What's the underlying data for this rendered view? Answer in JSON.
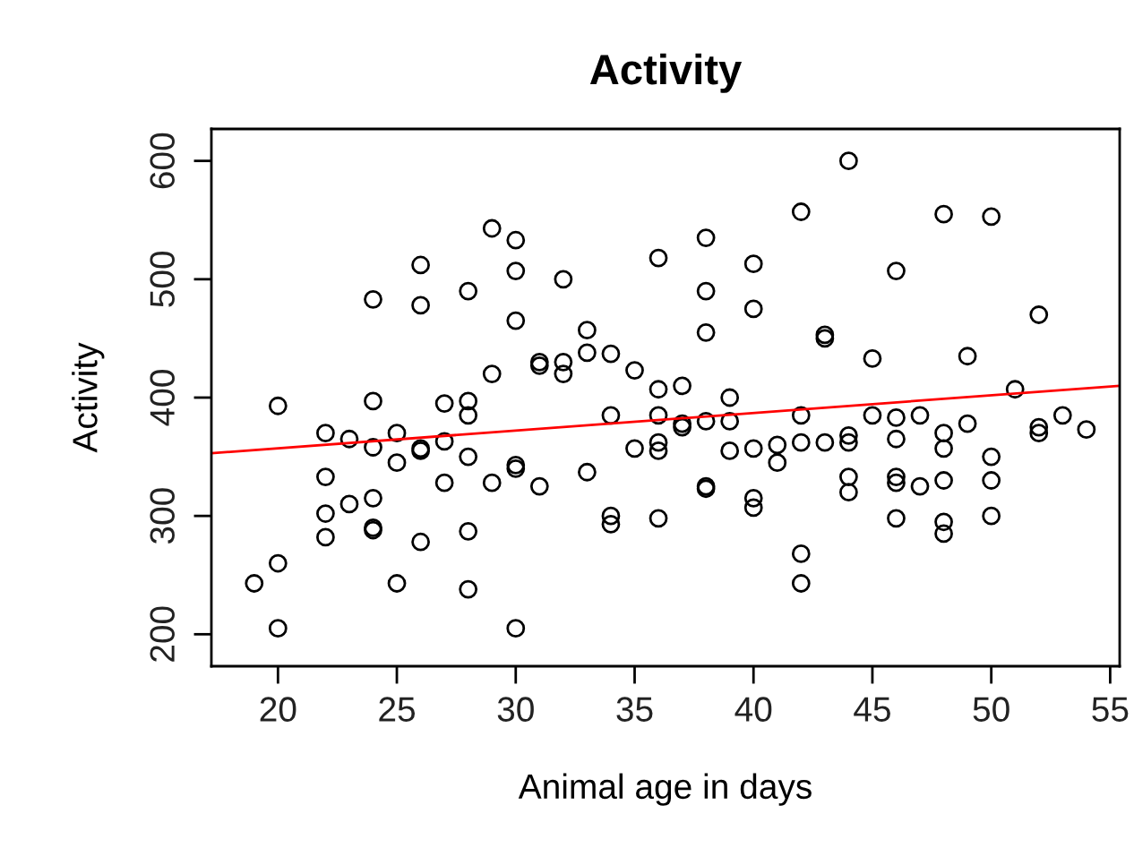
{
  "chart_data": {
    "type": "scatter",
    "title": "Activity",
    "xlabel": "Animal age in days",
    "ylabel": "Activity",
    "xlim": [
      17.2,
      55.4
    ],
    "ylim": [
      173,
      627
    ],
    "xticks": [
      20,
      25,
      30,
      35,
      40,
      45,
      50,
      55
    ],
    "yticks": [
      200,
      300,
      400,
      500,
      600
    ],
    "grid": false,
    "legend": false,
    "marker": "circle",
    "series": [
      {
        "color": "#000000",
        "x": [
          19,
          20,
          20,
          20,
          22,
          22,
          22,
          22,
          23,
          23,
          24,
          24,
          24,
          24,
          24,
          24,
          25,
          25,
          25,
          26,
          26,
          26,
          26,
          26,
          27,
          27,
          27,
          28,
          28,
          28,
          28,
          28,
          28,
          29,
          29,
          29,
          30,
          30,
          30,
          30,
          30,
          30,
          31,
          31,
          31,
          32,
          32,
          32,
          33,
          33,
          33,
          34,
          34,
          34,
          34,
          35,
          35,
          36,
          36,
          36,
          36,
          36,
          36,
          37,
          37,
          37,
          38,
          38,
          38,
          38,
          38,
          38,
          39,
          39,
          39,
          40,
          40,
          40,
          40,
          40,
          41,
          41,
          42,
          42,
          42,
          42,
          42,
          43,
          43,
          43,
          44,
          44,
          44,
          44,
          44,
          45,
          45,
          46,
          46,
          46,
          46,
          46,
          46,
          47,
          47,
          48,
          48,
          48,
          48,
          48,
          48,
          49,
          49,
          50,
          50,
          50,
          50,
          51,
          52,
          52,
          52,
          53,
          54
        ],
        "values": [
          243,
          393,
          260,
          205,
          370,
          333,
          302,
          282,
          365,
          310,
          483,
          397,
          358,
          315,
          290,
          288,
          370,
          345,
          243,
          512,
          478,
          355,
          357,
          278,
          395,
          363,
          328,
          490,
          397,
          385,
          350,
          287,
          238,
          543,
          420,
          328,
          533,
          507,
          465,
          343,
          340,
          205,
          430,
          427,
          325,
          500,
          430,
          420,
          457,
          438,
          337,
          437,
          385,
          300,
          293,
          423,
          357,
          518,
          407,
          385,
          362,
          355,
          298,
          410,
          378,
          375,
          535,
          490,
          455,
          380,
          325,
          323,
          400,
          380,
          355,
          513,
          475,
          357,
          315,
          307,
          360,
          345,
          557,
          385,
          362,
          268,
          243,
          453,
          450,
          362,
          600,
          368,
          362,
          333,
          320,
          433,
          385,
          507,
          383,
          365,
          333,
          328,
          298,
          385,
          325,
          555,
          370,
          357,
          330,
          295,
          285,
          435,
          378,
          553,
          350,
          330,
          300,
          407,
          470,
          375,
          370,
          385,
          373
        ]
      },
      {
        "type": "line",
        "color": "#ff0000",
        "marker": "none",
        "line_style": "solid",
        "x": [
          17.2,
          55.4
        ],
        "values": [
          353,
          410
        ]
      }
    ]
  }
}
